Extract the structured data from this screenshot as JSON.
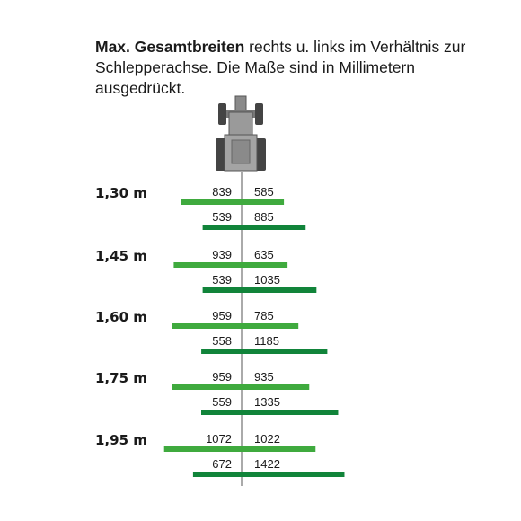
{
  "header": {
    "bold": "Max. Gesamtbreiten",
    "text": " rechts u. links im Verhältnis zur Schlepperachse. Die Maße sind in Millimetern ausgedrückt."
  },
  "icon": "tractor-top-view-icon",
  "colors": {
    "bar_light": "#3faa3e",
    "bar_dark": "#11843a",
    "axis": "#555555"
  },
  "chart_data": {
    "type": "bar",
    "categories": [
      "1,30 m",
      "1,45 m",
      "1,60 m",
      "1,75 m",
      "1,95 m"
    ],
    "series": [
      {
        "left": [
          839,
          939,
          959,
          959,
          1072
        ],
        "right": [
          585,
          635,
          785,
          935,
          1022
        ]
      },
      {
        "left": [
          539,
          539,
          558,
          559,
          672
        ],
        "right": [
          885,
          1035,
          1185,
          1335,
          1422
        ]
      }
    ]
  }
}
